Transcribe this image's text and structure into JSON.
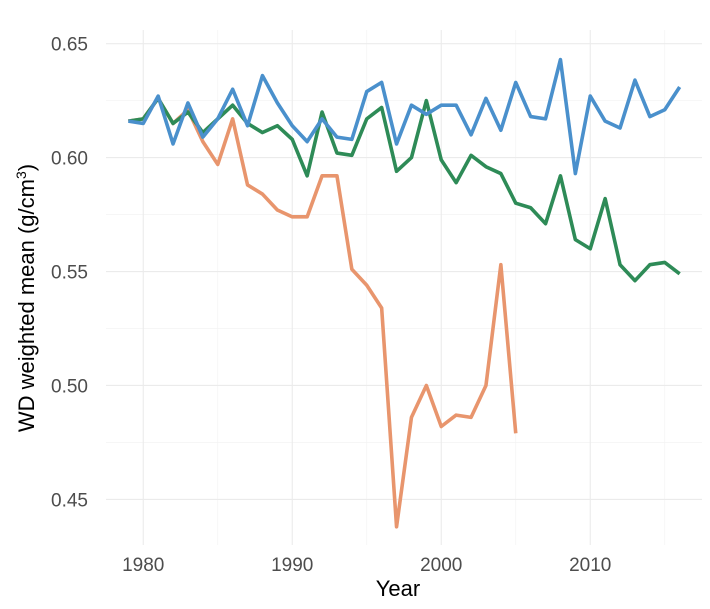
{
  "chart_data": {
    "type": "line",
    "title": "",
    "xlabel": "Year",
    "ylabel_main": "WD weighted mean (g/cm",
    "ylabel_superscript": "3",
    "ylabel_close": ")",
    "xlim": [
      1977.5,
      2017.5
    ],
    "ylim": [
      0.43,
      0.656
    ],
    "x_ticks": [
      1980,
      1990,
      2000,
      2010
    ],
    "x_tick_labels": [
      "1980",
      "1990",
      "2000",
      "2010"
    ],
    "y_ticks": [
      0.45,
      0.5,
      0.55,
      0.6,
      0.65
    ],
    "y_tick_labels": [
      "0.45",
      "0.50",
      "0.55",
      "0.60",
      "0.65"
    ],
    "grid": true,
    "legend": "none",
    "series": [
      {
        "color": "#e8956d",
        "points": [
          [
            1979,
            0.616
          ],
          [
            1980,
            0.617
          ],
          [
            1981,
            0.626
          ],
          [
            1982,
            0.615
          ],
          [
            1983,
            0.621
          ],
          [
            1984,
            0.607
          ],
          [
            1985,
            0.597
          ],
          [
            1986,
            0.617
          ],
          [
            1987,
            0.588
          ],
          [
            1988,
            0.584
          ],
          [
            1989,
            0.577
          ],
          [
            1990,
            0.574
          ],
          [
            1991,
            0.574
          ],
          [
            1992,
            0.592
          ],
          [
            1993,
            0.592
          ],
          [
            1994,
            0.551
          ],
          [
            1995,
            0.544
          ],
          [
            1996,
            0.534
          ],
          [
            1997,
            0.438
          ],
          [
            1998,
            0.486
          ],
          [
            1999,
            0.5
          ],
          [
            2000,
            0.482
          ],
          [
            2001,
            0.487
          ],
          [
            2002,
            0.486
          ],
          [
            2003,
            0.5
          ],
          [
            2004,
            0.553
          ],
          [
            2005,
            0.479
          ]
        ]
      },
      {
        "color": "#2e8b57",
        "points": [
          [
            1979,
            0.616
          ],
          [
            1980,
            0.617
          ],
          [
            1981,
            0.626
          ],
          [
            1982,
            0.615
          ],
          [
            1983,
            0.62
          ],
          [
            1984,
            0.611
          ],
          [
            1985,
            0.617
          ],
          [
            1986,
            0.623
          ],
          [
            1987,
            0.615
          ],
          [
            1988,
            0.611
          ],
          [
            1989,
            0.614
          ],
          [
            1990,
            0.608
          ],
          [
            1991,
            0.592
          ],
          [
            1992,
            0.62
          ],
          [
            1993,
            0.602
          ],
          [
            1994,
            0.601
          ],
          [
            1995,
            0.617
          ],
          [
            1996,
            0.622
          ],
          [
            1997,
            0.594
          ],
          [
            1998,
            0.6
          ],
          [
            1999,
            0.625
          ],
          [
            2000,
            0.599
          ],
          [
            2001,
            0.589
          ],
          [
            2002,
            0.601
          ],
          [
            2003,
            0.596
          ],
          [
            2004,
            0.593
          ],
          [
            2005,
            0.58
          ],
          [
            2006,
            0.578
          ],
          [
            2007,
            0.571
          ],
          [
            2008,
            0.592
          ],
          [
            2009,
            0.564
          ],
          [
            2010,
            0.56
          ],
          [
            2011,
            0.582
          ],
          [
            2012,
            0.553
          ],
          [
            2013,
            0.546
          ],
          [
            2014,
            0.553
          ],
          [
            2015,
            0.554
          ],
          [
            2016,
            0.549
          ]
        ]
      },
      {
        "color": "#4a90cc",
        "points": [
          [
            1979,
            0.616
          ],
          [
            1980,
            0.615
          ],
          [
            1981,
            0.627
          ],
          [
            1982,
            0.606
          ],
          [
            1983,
            0.624
          ],
          [
            1984,
            0.609
          ],
          [
            1985,
            0.617
          ],
          [
            1986,
            0.63
          ],
          [
            1987,
            0.614
          ],
          [
            1988,
            0.636
          ],
          [
            1989,
            0.624
          ],
          [
            1990,
            0.614
          ],
          [
            1991,
            0.607
          ],
          [
            1992,
            0.617
          ],
          [
            1993,
            0.609
          ],
          [
            1994,
            0.608
          ],
          [
            1995,
            0.629
          ],
          [
            1996,
            0.633
          ],
          [
            1997,
            0.606
          ],
          [
            1998,
            0.623
          ],
          [
            1999,
            0.619
          ],
          [
            2000,
            0.623
          ],
          [
            2001,
            0.623
          ],
          [
            2002,
            0.61
          ],
          [
            2003,
            0.626
          ],
          [
            2004,
            0.612
          ],
          [
            2005,
            0.633
          ],
          [
            2006,
            0.618
          ],
          [
            2007,
            0.617
          ],
          [
            2008,
            0.643
          ],
          [
            2009,
            0.593
          ],
          [
            2010,
            0.627
          ],
          [
            2011,
            0.616
          ],
          [
            2012,
            0.613
          ],
          [
            2013,
            0.634
          ],
          [
            2014,
            0.618
          ],
          [
            2015,
            0.621
          ],
          [
            2016,
            0.631
          ]
        ]
      }
    ]
  }
}
